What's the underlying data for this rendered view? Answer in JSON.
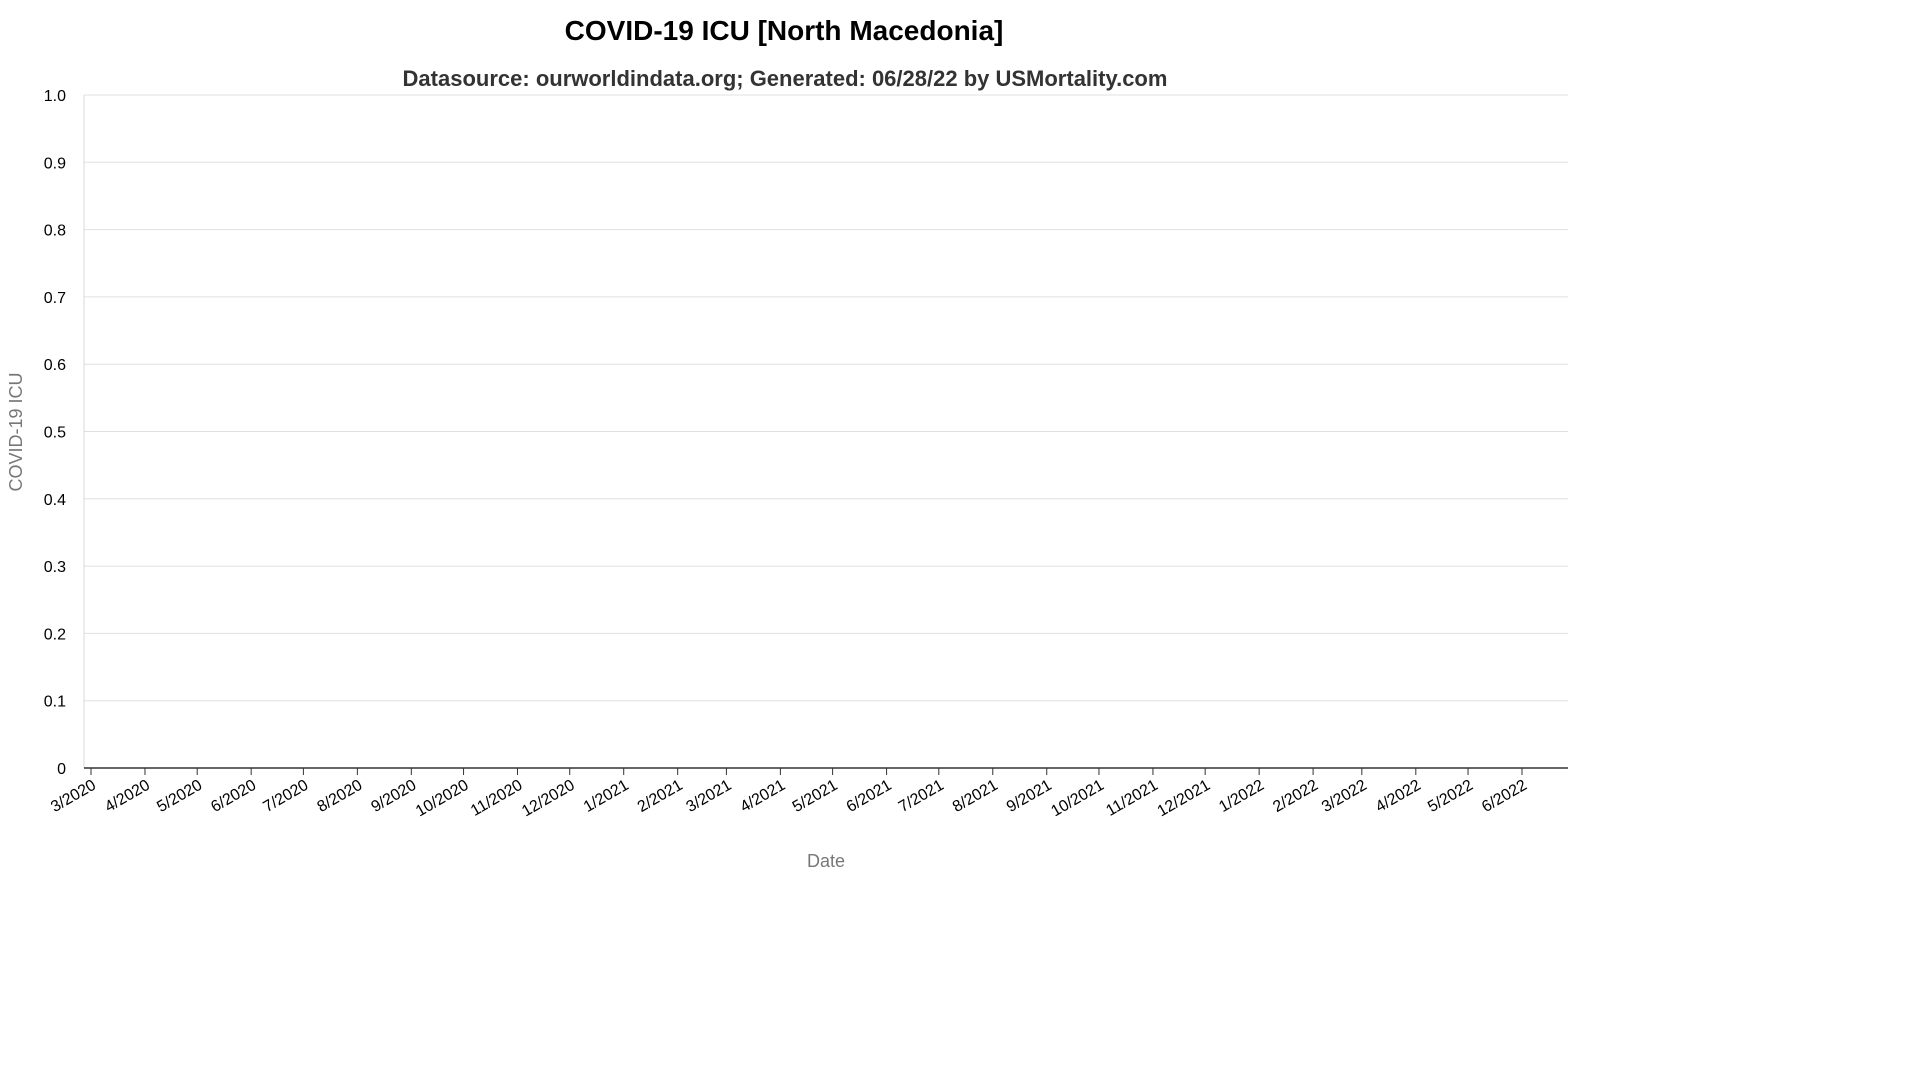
{
  "chart_data": {
    "type": "line",
    "title": "COVID-19 ICU [North Macedonia]",
    "subtitle": "Datasource: ourworldindata.org; Generated: 06/28/22 by USMortality.com",
    "xlabel": "Date",
    "ylabel": "COVID-19 ICU",
    "ylim": [
      0,
      1
    ],
    "y_ticks": [
      "0",
      "0.1",
      "0.2",
      "0.3",
      "0.4",
      "0.5",
      "0.6",
      "0.7",
      "0.8",
      "0.9",
      "1.0"
    ],
    "x_ticks": [
      "3/2020",
      "4/2020",
      "5/2020",
      "6/2020",
      "7/2020",
      "8/2020",
      "9/2020",
      "10/2020",
      "11/2020",
      "12/2020",
      "1/2021",
      "2/2021",
      "3/2021",
      "4/2021",
      "5/2021",
      "6/2021",
      "7/2021",
      "8/2021",
      "9/2021",
      "10/2021",
      "11/2021",
      "12/2021",
      "1/2022",
      "2/2022",
      "3/2022",
      "4/2022",
      "5/2022",
      "6/2022"
    ],
    "series": [],
    "grid": true,
    "legend": "none"
  }
}
